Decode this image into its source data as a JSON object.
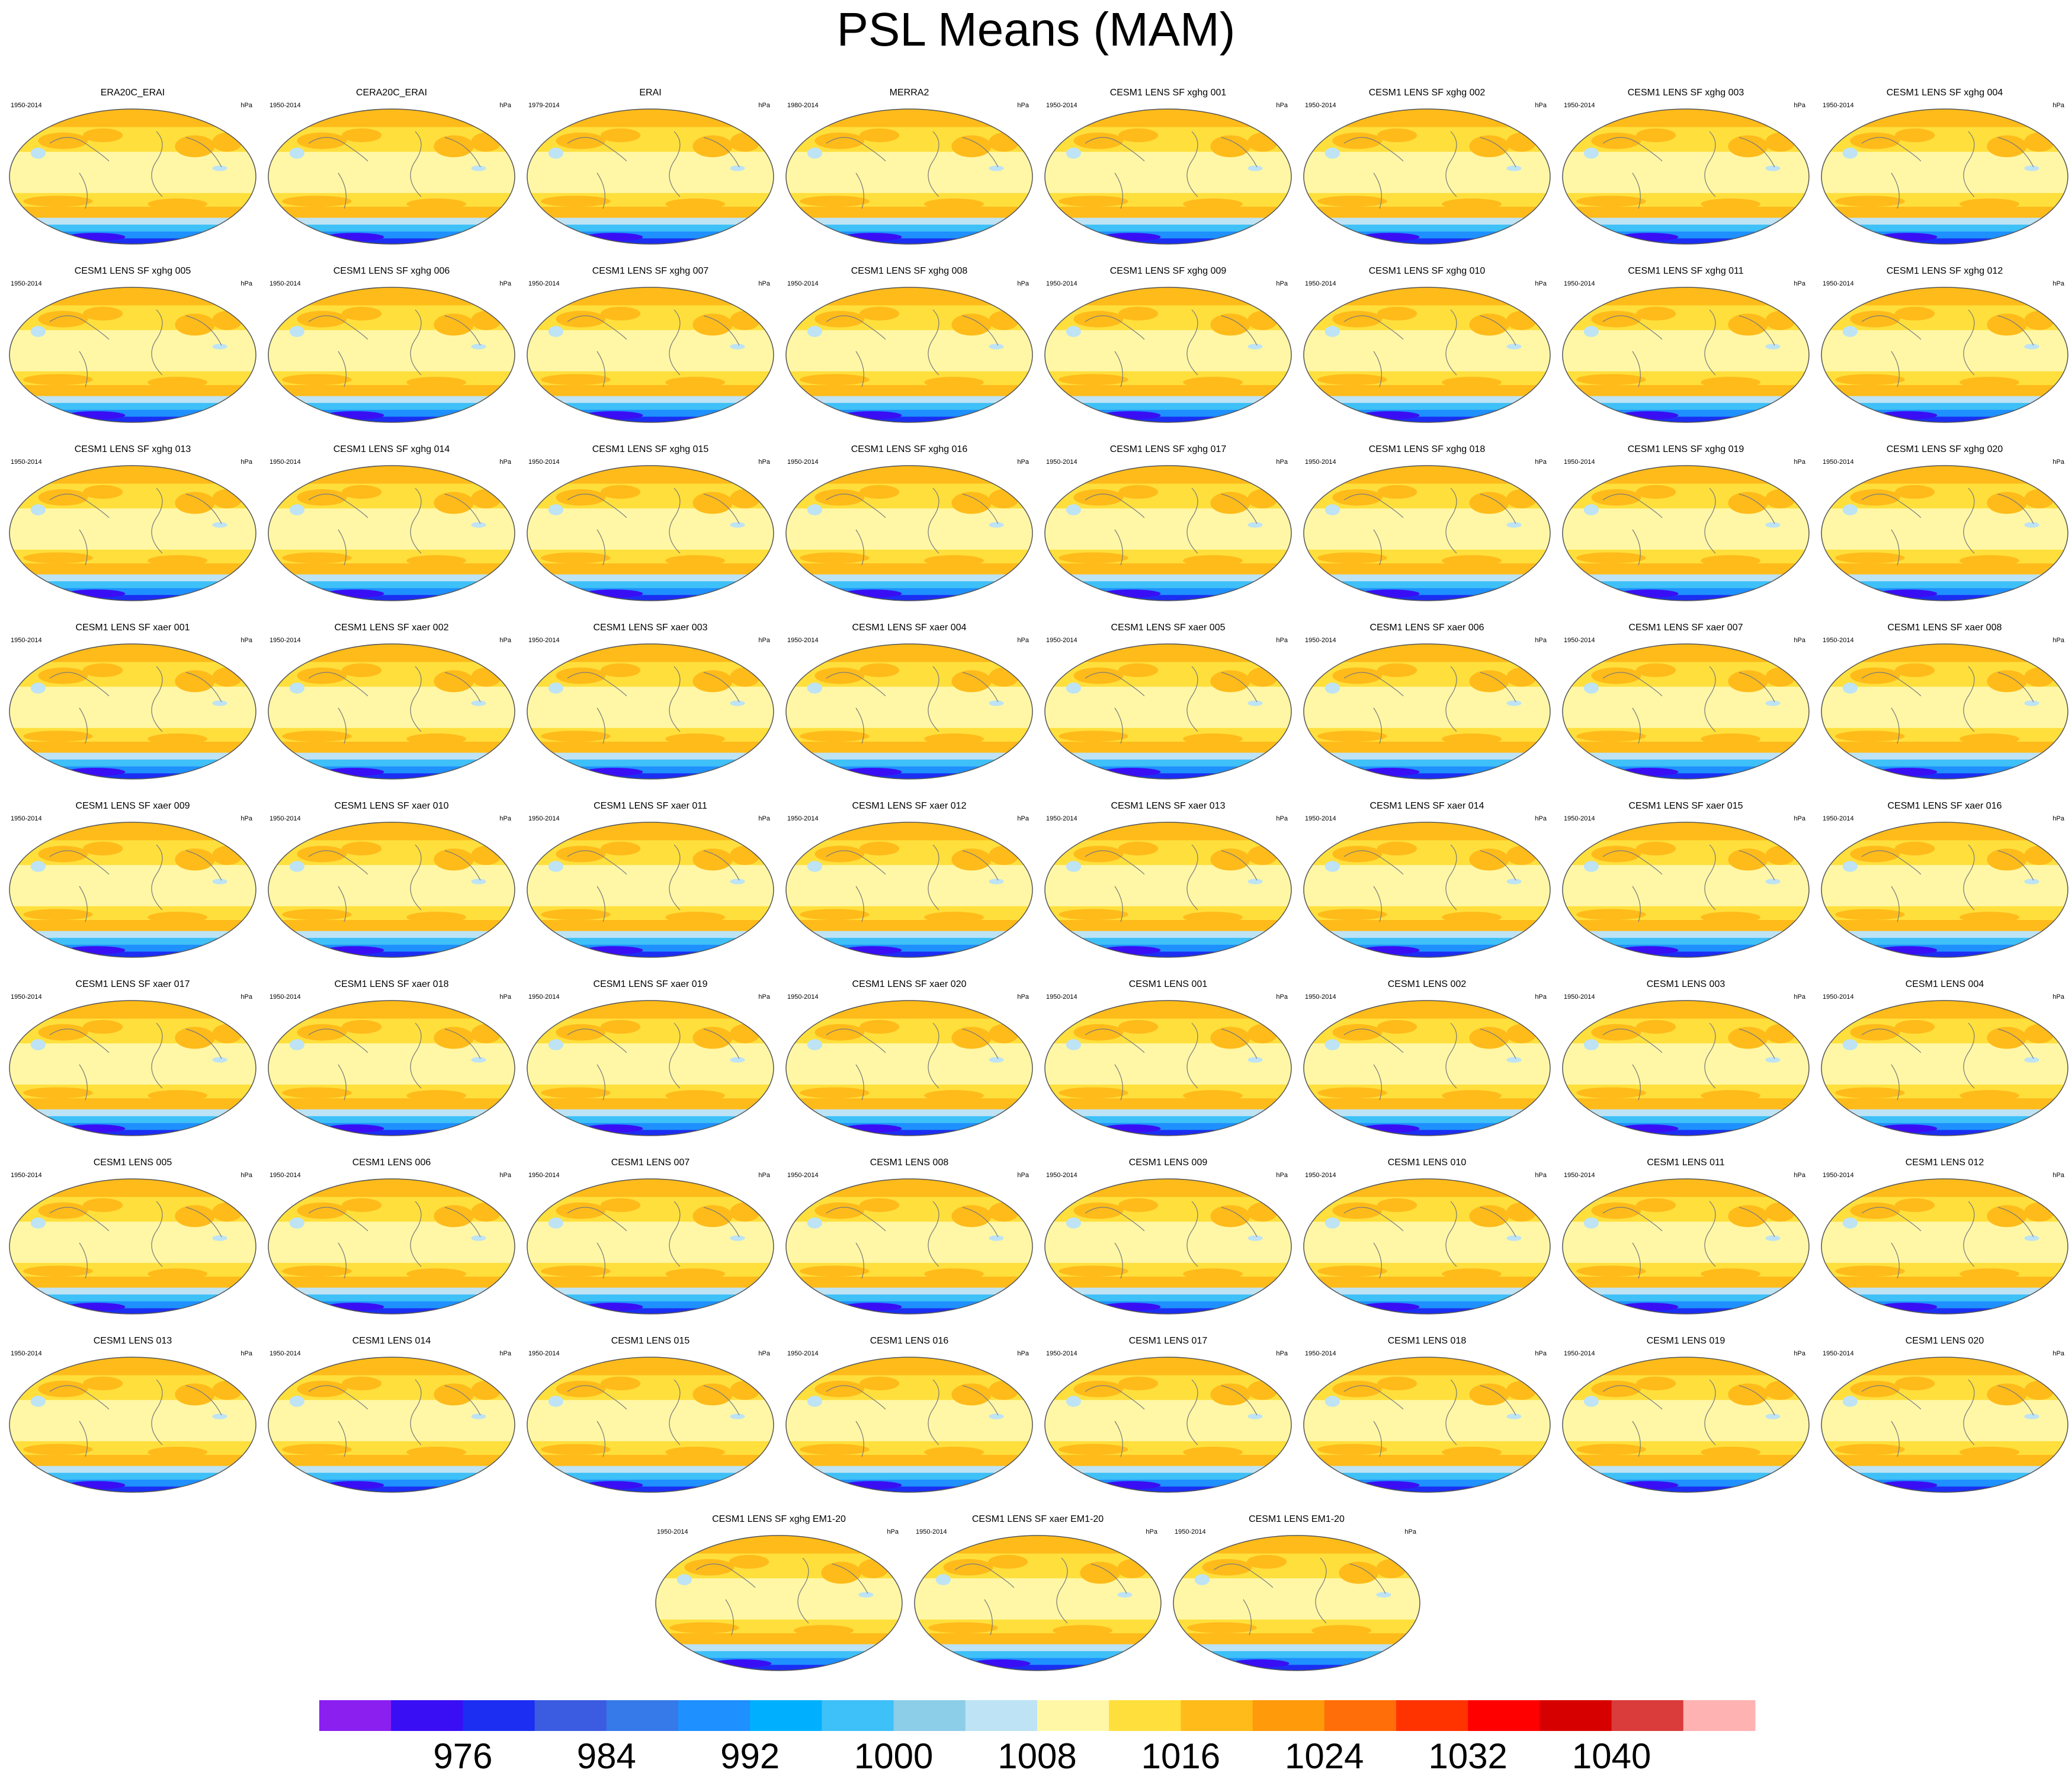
{
  "figure": {
    "title": "PSL Means (MAM)"
  },
  "panels": [
    {
      "title": "ERA20C_ERAI",
      "years": "1950-2014",
      "units": "hPa"
    },
    {
      "title": "CERA20C_ERAI",
      "years": "1950-2014",
      "units": "hPa"
    },
    {
      "title": "ERAI",
      "years": "1979-2014",
      "units": "hPa"
    },
    {
      "title": "MERRA2",
      "years": "1980-2014",
      "units": "hPa"
    },
    {
      "title": "CESM1 LENS SF xghg 001",
      "years": "1950-2014",
      "units": "hPa"
    },
    {
      "title": "CESM1 LENS SF xghg 002",
      "years": "1950-2014",
      "units": "hPa"
    },
    {
      "title": "CESM1 LENS SF xghg 003",
      "years": "1950-2014",
      "units": "hPa"
    },
    {
      "title": "CESM1 LENS SF xghg 004",
      "years": "1950-2014",
      "units": "hPa"
    },
    {
      "title": "CESM1 LENS SF xghg 005",
      "years": "1950-2014",
      "units": "hPa"
    },
    {
      "title": "CESM1 LENS SF xghg 006",
      "years": "1950-2014",
      "units": "hPa"
    },
    {
      "title": "CESM1 LENS SF xghg 007",
      "years": "1950-2014",
      "units": "hPa"
    },
    {
      "title": "CESM1 LENS SF xghg 008",
      "years": "1950-2014",
      "units": "hPa"
    },
    {
      "title": "CESM1 LENS SF xghg 009",
      "years": "1950-2014",
      "units": "hPa"
    },
    {
      "title": "CESM1 LENS SF xghg 010",
      "years": "1950-2014",
      "units": "hPa"
    },
    {
      "title": "CESM1 LENS SF xghg 011",
      "years": "1950-2014",
      "units": "hPa"
    },
    {
      "title": "CESM1 LENS SF xghg 012",
      "years": "1950-2014",
      "units": "hPa"
    },
    {
      "title": "CESM1 LENS SF xghg 013",
      "years": "1950-2014",
      "units": "hPa"
    },
    {
      "title": "CESM1 LENS SF xghg 014",
      "years": "1950-2014",
      "units": "hPa"
    },
    {
      "title": "CESM1 LENS SF xghg 015",
      "years": "1950-2014",
      "units": "hPa"
    },
    {
      "title": "CESM1 LENS SF xghg 016",
      "years": "1950-2014",
      "units": "hPa"
    },
    {
      "title": "CESM1 LENS SF xghg 017",
      "years": "1950-2014",
      "units": "hPa"
    },
    {
      "title": "CESM1 LENS SF xghg 018",
      "years": "1950-2014",
      "units": "hPa"
    },
    {
      "title": "CESM1 LENS SF xghg 019",
      "years": "1950-2014",
      "units": "hPa"
    },
    {
      "title": "CESM1 LENS SF xghg 020",
      "years": "1950-2014",
      "units": "hPa"
    },
    {
      "title": "CESM1 LENS SF xaer 001",
      "years": "1950-2014",
      "units": "hPa"
    },
    {
      "title": "CESM1 LENS SF xaer 002",
      "years": "1950-2014",
      "units": "hPa"
    },
    {
      "title": "CESM1 LENS SF xaer 003",
      "years": "1950-2014",
      "units": "hPa"
    },
    {
      "title": "CESM1 LENS SF xaer 004",
      "years": "1950-2014",
      "units": "hPa"
    },
    {
      "title": "CESM1 LENS SF xaer 005",
      "years": "1950-2014",
      "units": "hPa"
    },
    {
      "title": "CESM1 LENS SF xaer 006",
      "years": "1950-2014",
      "units": "hPa"
    },
    {
      "title": "CESM1 LENS SF xaer 007",
      "years": "1950-2014",
      "units": "hPa"
    },
    {
      "title": "CESM1 LENS SF xaer 008",
      "years": "1950-2014",
      "units": "hPa"
    },
    {
      "title": "CESM1 LENS SF xaer 009",
      "years": "1950-2014",
      "units": "hPa"
    },
    {
      "title": "CESM1 LENS SF xaer 010",
      "years": "1950-2014",
      "units": "hPa"
    },
    {
      "title": "CESM1 LENS SF xaer 011",
      "years": "1950-2014",
      "units": "hPa"
    },
    {
      "title": "CESM1 LENS SF xaer 012",
      "years": "1950-2014",
      "units": "hPa"
    },
    {
      "title": "CESM1 LENS SF xaer 013",
      "years": "1950-2014",
      "units": "hPa"
    },
    {
      "title": "CESM1 LENS SF xaer 014",
      "years": "1950-2014",
      "units": "hPa"
    },
    {
      "title": "CESM1 LENS SF xaer 015",
      "years": "1950-2014",
      "units": "hPa"
    },
    {
      "title": "CESM1 LENS SF xaer 016",
      "years": "1950-2014",
      "units": "hPa"
    },
    {
      "title": "CESM1 LENS SF xaer 017",
      "years": "1950-2014",
      "units": "hPa"
    },
    {
      "title": "CESM1 LENS SF xaer 018",
      "years": "1950-2014",
      "units": "hPa"
    },
    {
      "title": "CESM1 LENS SF xaer 019",
      "years": "1950-2014",
      "units": "hPa"
    },
    {
      "title": "CESM1 LENS SF xaer 020",
      "years": "1950-2014",
      "units": "hPa"
    },
    {
      "title": "CESM1 LENS 001",
      "years": "1950-2014",
      "units": "hPa"
    },
    {
      "title": "CESM1 LENS 002",
      "years": "1950-2014",
      "units": "hPa"
    },
    {
      "title": "CESM1 LENS 003",
      "years": "1950-2014",
      "units": "hPa"
    },
    {
      "title": "CESM1 LENS 004",
      "years": "1950-2014",
      "units": "hPa"
    },
    {
      "title": "CESM1 LENS 005",
      "years": "1950-2014",
      "units": "hPa"
    },
    {
      "title": "CESM1 LENS 006",
      "years": "1950-2014",
      "units": "hPa"
    },
    {
      "title": "CESM1 LENS 007",
      "years": "1950-2014",
      "units": "hPa"
    },
    {
      "title": "CESM1 LENS 008",
      "years": "1950-2014",
      "units": "hPa"
    },
    {
      "title": "CESM1 LENS 009",
      "years": "1950-2014",
      "units": "hPa"
    },
    {
      "title": "CESM1 LENS 010",
      "years": "1950-2014",
      "units": "hPa"
    },
    {
      "title": "CESM1 LENS 011",
      "years": "1950-2014",
      "units": "hPa"
    },
    {
      "title": "CESM1 LENS 012",
      "years": "1950-2014",
      "units": "hPa"
    },
    {
      "title": "CESM1 LENS 013",
      "years": "1950-2014",
      "units": "hPa"
    },
    {
      "title": "CESM1 LENS 014",
      "years": "1950-2014",
      "units": "hPa"
    },
    {
      "title": "CESM1 LENS 015",
      "years": "1950-2014",
      "units": "hPa"
    },
    {
      "title": "CESM1 LENS 016",
      "years": "1950-2014",
      "units": "hPa"
    },
    {
      "title": "CESM1 LENS 017",
      "years": "1950-2014",
      "units": "hPa"
    },
    {
      "title": "CESM1 LENS 018",
      "years": "1950-2014",
      "units": "hPa"
    },
    {
      "title": "CESM1 LENS 019",
      "years": "1950-2014",
      "units": "hPa"
    },
    {
      "title": "CESM1 LENS 020",
      "years": "1950-2014",
      "units": "hPa"
    },
    {
      "title": "CESM1 LENS SF xghg EM1-20",
      "years": "1950-2014",
      "units": "hPa"
    },
    {
      "title": "CESM1 LENS SF xaer EM1-20",
      "years": "1950-2014",
      "units": "hPa"
    },
    {
      "title": "CESM1 LENS EM1-20",
      "years": "1950-2014",
      "units": "hPa"
    }
  ],
  "chart_data": {
    "type": "heatmap",
    "title": "PSL Means (MAM)",
    "units": "hPa",
    "colorbar": {
      "tick_labels": [
        "976",
        "984",
        "992",
        "1000",
        "1008",
        "1016",
        "1024",
        "1032",
        "1040"
      ],
      "colors": [
        "#8a1fef",
        "#3a0ef4",
        "#1b2ef2",
        "#3b5ce0",
        "#3679e8",
        "#1e90ff",
        "#00b0ff",
        "#3ec0f8",
        "#8ccde8",
        "#bde3f5",
        "#fff7a6",
        "#ffdf3c",
        "#ffbb1a",
        "#ff9a0a",
        "#ff6e08",
        "#ff3300",
        "#ff0000",
        "#d70000",
        "#da3b3b",
        "#ffb2b2"
      ]
    }
  }
}
